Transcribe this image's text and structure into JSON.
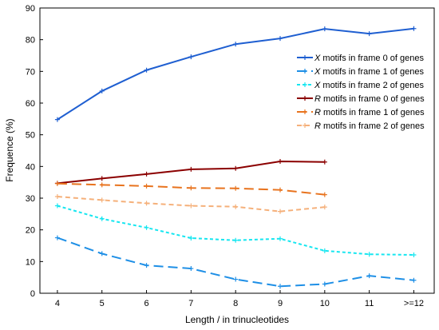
{
  "chart_data": {
    "type": "line",
    "title": "",
    "xlabel": "Length / in trinucleotides",
    "ylabel": "Frequence (%)",
    "categories": [
      "4",
      "5",
      "6",
      "7",
      "8",
      "9",
      "10",
      "11",
      ">=12"
    ],
    "ylim": [
      0,
      90
    ],
    "yticks": [
      0,
      10,
      20,
      30,
      40,
      50,
      60,
      70,
      80,
      90
    ],
    "grid": false,
    "legend_position": "top-right",
    "series": [
      {
        "name": "X motifs in frame 0 of genes",
        "letter": "X",
        "label_rest": " motifs in frame 0 of genes",
        "color": "#1f5fd1",
        "dash": "solid",
        "marker": "+",
        "values": [
          54.8,
          63.8,
          70.4,
          74.6,
          78.6,
          80.4,
          83.4,
          81.9,
          83.5
        ]
      },
      {
        "name": "X motifs in frame 1 of genes",
        "letter": "X",
        "label_rest": " motifs in frame 1 of genes",
        "color": "#1e8fe6",
        "dash": "longdash",
        "marker": "+",
        "values": [
          17.5,
          12.5,
          8.8,
          7.8,
          4.4,
          2.2,
          2.9,
          5.5,
          4.1
        ]
      },
      {
        "name": "X motifs in frame 2 of genes",
        "letter": "X",
        "label_rest": " motifs in frame 2 of genes",
        "color": "#16e6f0",
        "dash": "dashdot",
        "marker": "+",
        "values": [
          27.6,
          23.5,
          20.7,
          17.4,
          16.7,
          17.2,
          13.4,
          12.3,
          12.1
        ]
      },
      {
        "name": "R motifs in frame 0 of genes",
        "letter": "R",
        "label_rest": " motifs in frame 0 of genes",
        "color": "#8b0000",
        "dash": "solid",
        "marker": "+",
        "values": [
          34.7,
          36.2,
          37.6,
          39.1,
          39.4,
          41.6,
          41.4,
          null,
          null
        ]
      },
      {
        "name": "R motifs in frame 1 of genes",
        "letter": "R",
        "label_rest": " motifs in frame 1 of genes",
        "color": "#e8731e",
        "dash": "longdash",
        "marker": "+",
        "values": [
          34.6,
          34.2,
          33.8,
          33.2,
          33.1,
          32.6,
          31.1,
          null,
          null
        ]
      },
      {
        "name": "R motifs in frame 2 of genes",
        "letter": "R",
        "label_rest": " motifs in frame 2 of genes",
        "color": "#f5b07a",
        "dash": "shortdash",
        "marker": "+",
        "values": [
          30.5,
          29.4,
          28.4,
          27.6,
          27.3,
          25.8,
          27.2,
          null,
          null
        ]
      }
    ]
  }
}
